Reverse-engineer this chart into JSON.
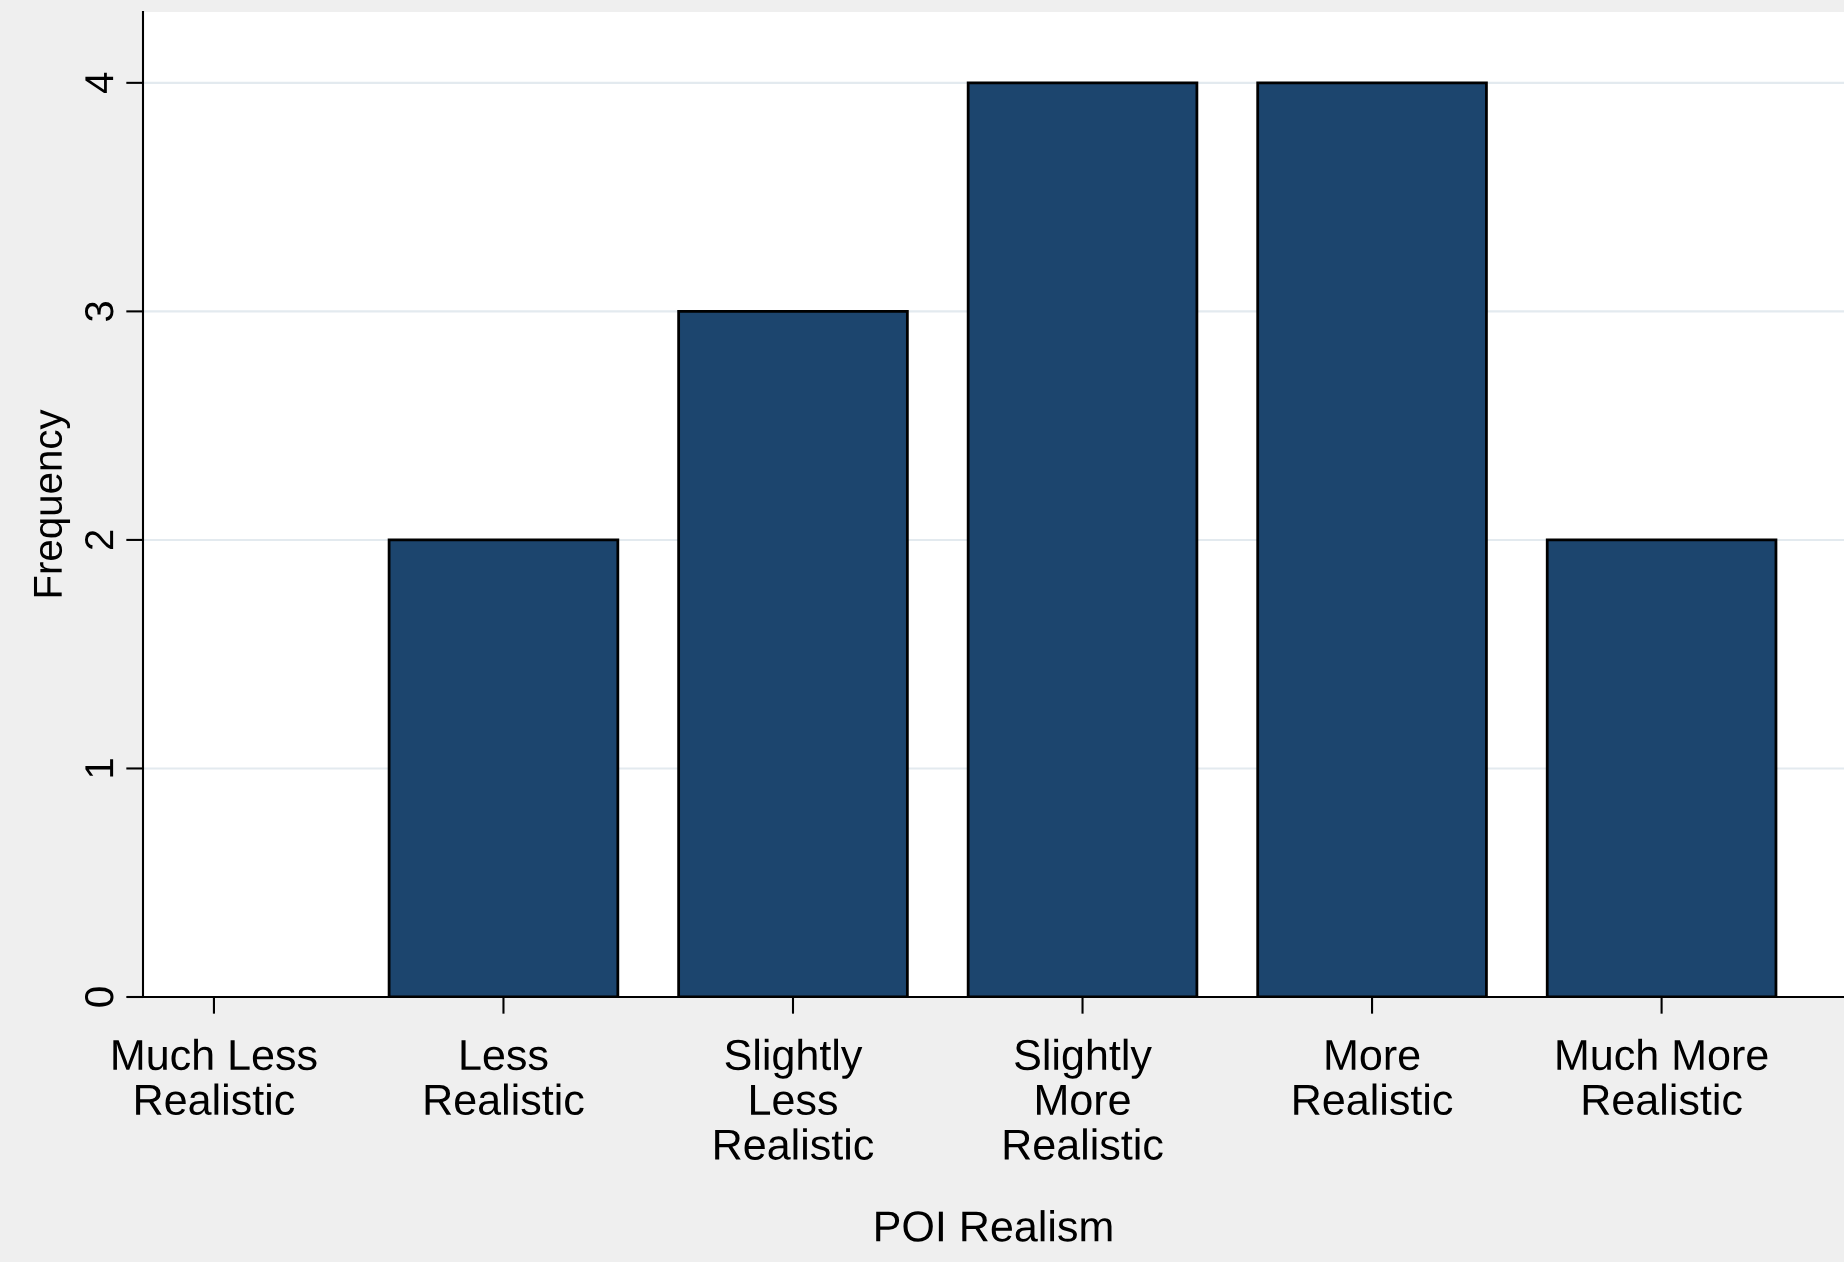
{
  "chart_data": {
    "type": "bar",
    "xlabel": "POI Realism",
    "ylabel": "Frequency",
    "categories": [
      "Much Less\nRealistic",
      "Less\nRealistic",
      "Slightly\nLess\nRealistic",
      "Slightly\nMore\nRealistic",
      "More\nRealistic",
      "Much More\nRealistic"
    ],
    "values": [
      0,
      2,
      3,
      4,
      4,
      2
    ],
    "color": "#1c456e",
    "ylim": [
      0,
      4.31
    ],
    "yticks": [
      0,
      1,
      2,
      3,
      4
    ],
    "grid": "y",
    "legend": false
  }
}
